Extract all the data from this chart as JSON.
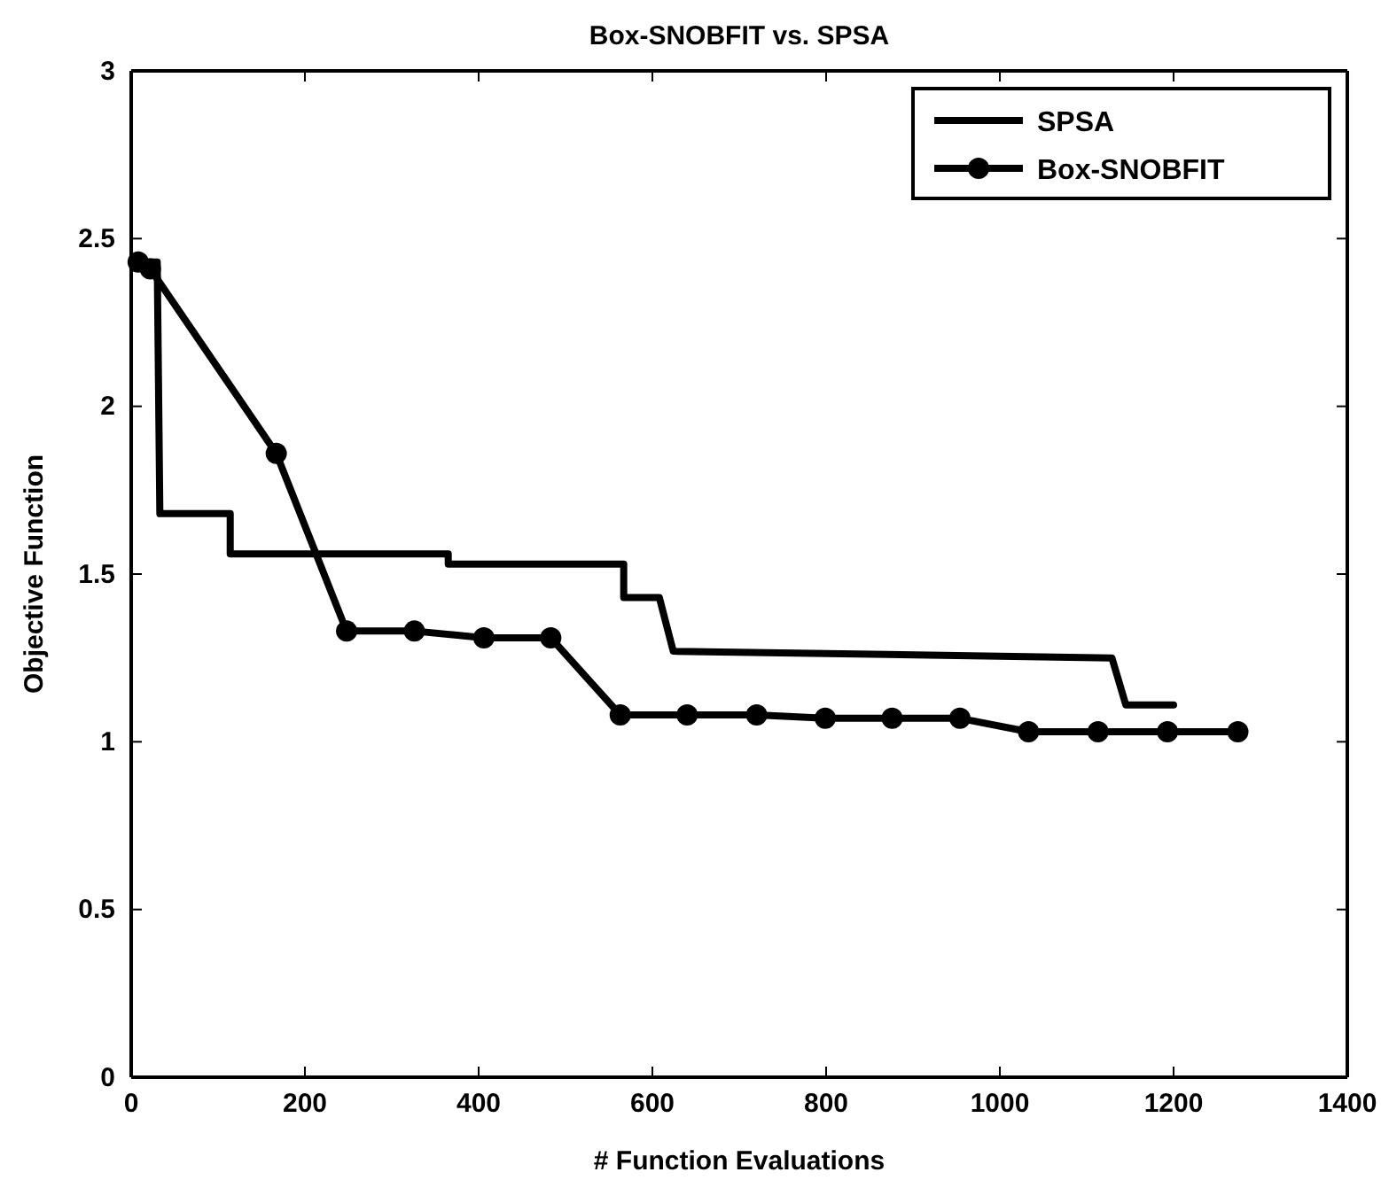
{
  "chart_data": {
    "type": "line",
    "title": "Box-SNOBFIT vs. SPSA",
    "xlabel": "# Function Evaluations",
    "ylabel": "Objective Function",
    "xlim": [
      0,
      1400
    ],
    "ylim": [
      0,
      3
    ],
    "xticks": [
      0,
      200,
      400,
      600,
      800,
      1000,
      1200,
      1400
    ],
    "yticks": [
      0,
      0.5,
      1,
      1.5,
      2,
      2.5,
      3
    ],
    "grid": false,
    "legend": "top right",
    "line_style": "solid",
    "series": [
      {
        "name": "SPSA",
        "color": "#000000",
        "marker": "none",
        "x": [
          10,
          30,
          33,
          114,
          114,
          365,
          365,
          567,
          567,
          608,
          624,
          1129,
          1145,
          1200
        ],
        "values": [
          2.43,
          2.43,
          1.68,
          1.68,
          1.56,
          1.56,
          1.53,
          1.53,
          1.43,
          1.43,
          1.27,
          1.25,
          1.11,
          1.11
        ]
      },
      {
        "name": "Box-SNOBFIT",
        "color": "#000000",
        "marker": "circle",
        "x": [
          8,
          22,
          167,
          248,
          326,
          406,
          483,
          563,
          640,
          720,
          799,
          876,
          954,
          1033,
          1113,
          1193,
          1274
        ],
        "values": [
          2.43,
          2.41,
          1.86,
          1.33,
          1.33,
          1.31,
          1.31,
          1.08,
          1.08,
          1.08,
          1.07,
          1.07,
          1.07,
          1.03,
          1.03,
          1.03,
          1.03
        ]
      }
    ]
  }
}
